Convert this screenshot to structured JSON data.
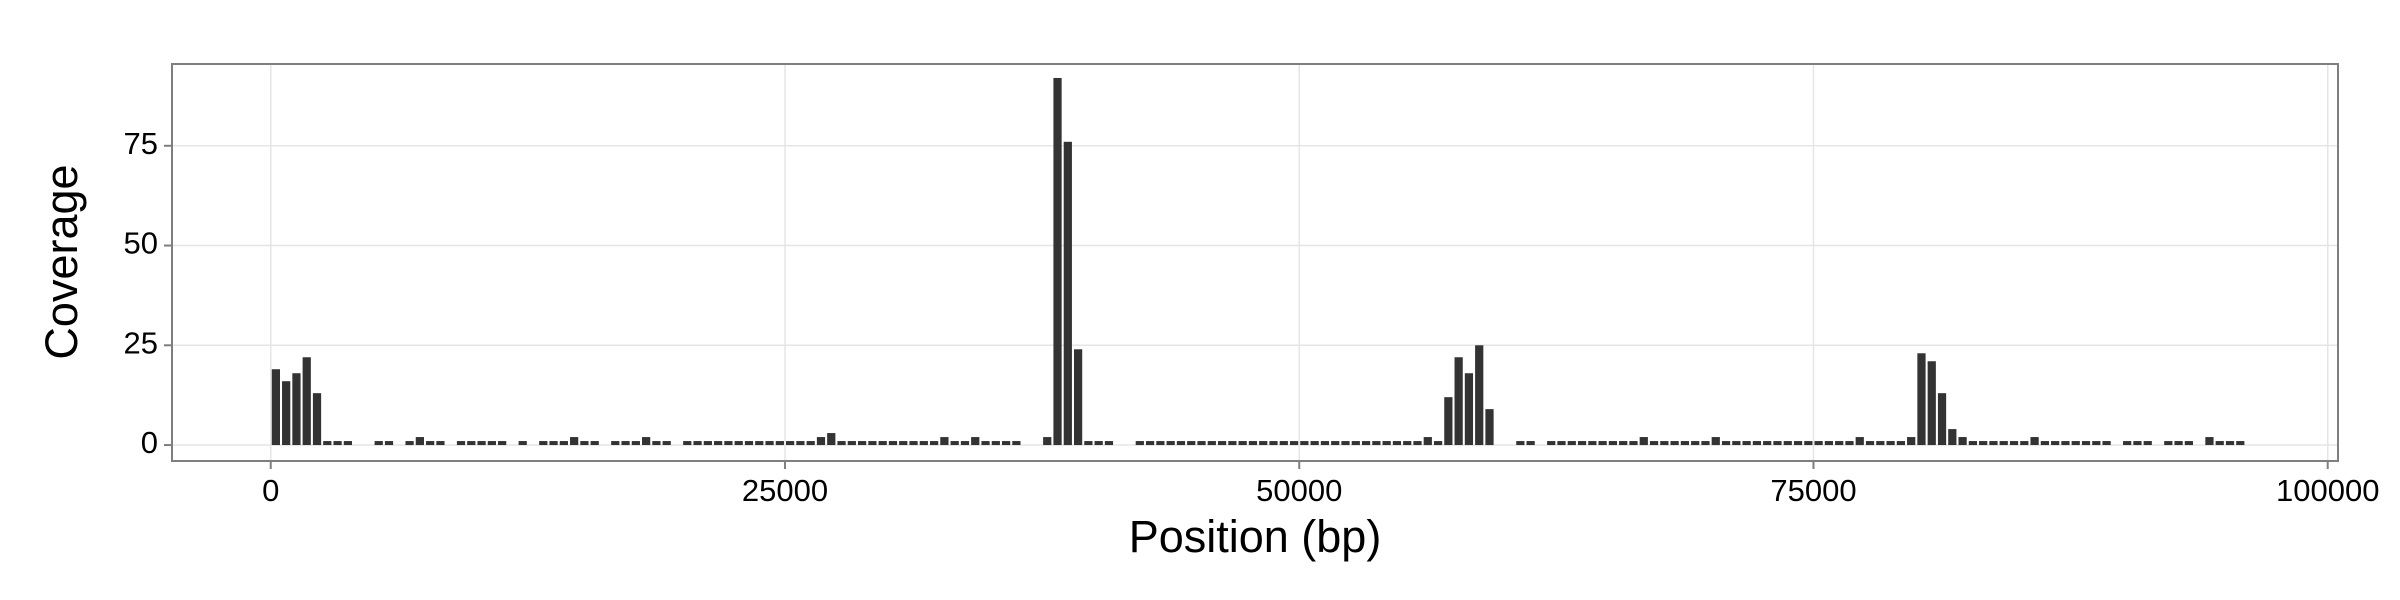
{
  "chart_data": {
    "type": "bar",
    "xlabel": "Position (bp)",
    "ylabel": "Coverage",
    "x": [
      0,
      500,
      1000,
      1500,
      2000,
      2500,
      3000,
      3500,
      4000,
      4500,
      5000,
      5500,
      6000,
      6500,
      7000,
      7500,
      8000,
      8500,
      9000,
      9500,
      10000,
      10500,
      11000,
      11500,
      12000,
      12500,
      13000,
      13500,
      14000,
      14500,
      15000,
      15500,
      16000,
      16500,
      17000,
      17500,
      18000,
      18500,
      19000,
      19500,
      20000,
      20500,
      21000,
      21500,
      22000,
      22500,
      23000,
      23500,
      24000,
      24500,
      25000,
      25500,
      26000,
      26500,
      27000,
      27500,
      28000,
      28500,
      29000,
      29500,
      30000,
      30500,
      31000,
      31500,
      32000,
      32500,
      33000,
      33500,
      34000,
      34500,
      35000,
      35500,
      36000,
      36500,
      37000,
      37500,
      38000,
      38500,
      39000,
      39500,
      40000,
      40500,
      41000,
      41500,
      42000,
      42500,
      43000,
      43500,
      44000,
      44500,
      45000,
      45500,
      46000,
      46500,
      47000,
      47500,
      48000,
      48500,
      49000,
      49500,
      50000,
      50500,
      51000,
      51500,
      52000,
      52500,
      53000,
      53500,
      54000,
      54500,
      55000,
      55500,
      56000,
      56500,
      57000,
      57500,
      58000,
      58500,
      59000,
      59500,
      60000,
      60500,
      61000,
      61500,
      62000,
      62500,
      63000,
      63500,
      64000,
      64500,
      65000,
      65500,
      66000,
      66500,
      67000,
      67500,
      68000,
      68500,
      69000,
      69500,
      70000,
      70500,
      71000,
      71500,
      72000,
      72500,
      73000,
      73500,
      74000,
      74500,
      75000,
      75500,
      76000,
      76500,
      77000,
      77500,
      78000,
      78500,
      79000,
      79500,
      80000,
      80500,
      81000,
      81500,
      82000,
      82500,
      83000,
      83500,
      84000,
      84500,
      85000,
      85500,
      86000,
      86500,
      87000,
      87500,
      88000,
      88500,
      89000,
      89500,
      90000,
      90500,
      91000,
      91500,
      92000,
      92500,
      93000,
      93500,
      94000,
      94500,
      95000,
      95500
    ],
    "values": [
      19,
      16,
      18,
      22,
      13,
      1,
      1,
      1,
      0,
      0,
      1,
      1,
      0,
      1,
      2,
      1,
      1,
      0,
      1,
      1,
      1,
      1,
      1,
      0,
      1,
      0,
      1,
      1,
      1,
      2,
      1,
      1,
      0,
      1,
      1,
      1,
      2,
      1,
      1,
      0,
      1,
      1,
      1,
      1,
      1,
      1,
      1,
      1,
      1,
      1,
      1,
      1,
      1,
      2,
      3,
      1,
      1,
      1,
      1,
      1,
      1,
      1,
      1,
      1,
      1,
      2,
      1,
      1,
      2,
      1,
      1,
      1,
      1,
      0,
      0,
      2,
      92,
      76,
      24,
      1,
      1,
      1,
      0,
      0,
      1,
      1,
      1,
      1,
      1,
      1,
      1,
      1,
      1,
      1,
      1,
      1,
      1,
      1,
      1,
      1,
      1,
      1,
      1,
      1,
      1,
      1,
      1,
      1,
      1,
      1,
      1,
      1,
      2,
      1,
      12,
      22,
      18,
      25,
      9,
      0,
      0,
      1,
      1,
      0,
      1,
      1,
      1,
      1,
      1,
      1,
      1,
      1,
      1,
      2,
      1,
      1,
      1,
      1,
      1,
      1,
      2,
      1,
      1,
      1,
      1,
      1,
      1,
      1,
      1,
      1,
      1,
      1,
      1,
      1,
      2,
      1,
      1,
      1,
      1,
      2,
      23,
      21,
      13,
      4,
      2,
      1,
      1,
      1,
      1,
      1,
      1,
      2,
      1,
      1,
      1,
      1,
      1,
      1,
      1,
      0,
      1,
      1,
      1,
      0,
      1,
      1,
      1,
      0,
      2,
      1,
      1,
      1
    ],
    "color": "#333333",
    "xlim": [
      -4800,
      100500
    ],
    "ylim": [
      -4,
      95.5
    ],
    "xticks": [
      0,
      25000,
      50000,
      75000,
      100000
    ],
    "yticks": [
      0,
      25,
      50,
      75
    ],
    "grid": true
  }
}
